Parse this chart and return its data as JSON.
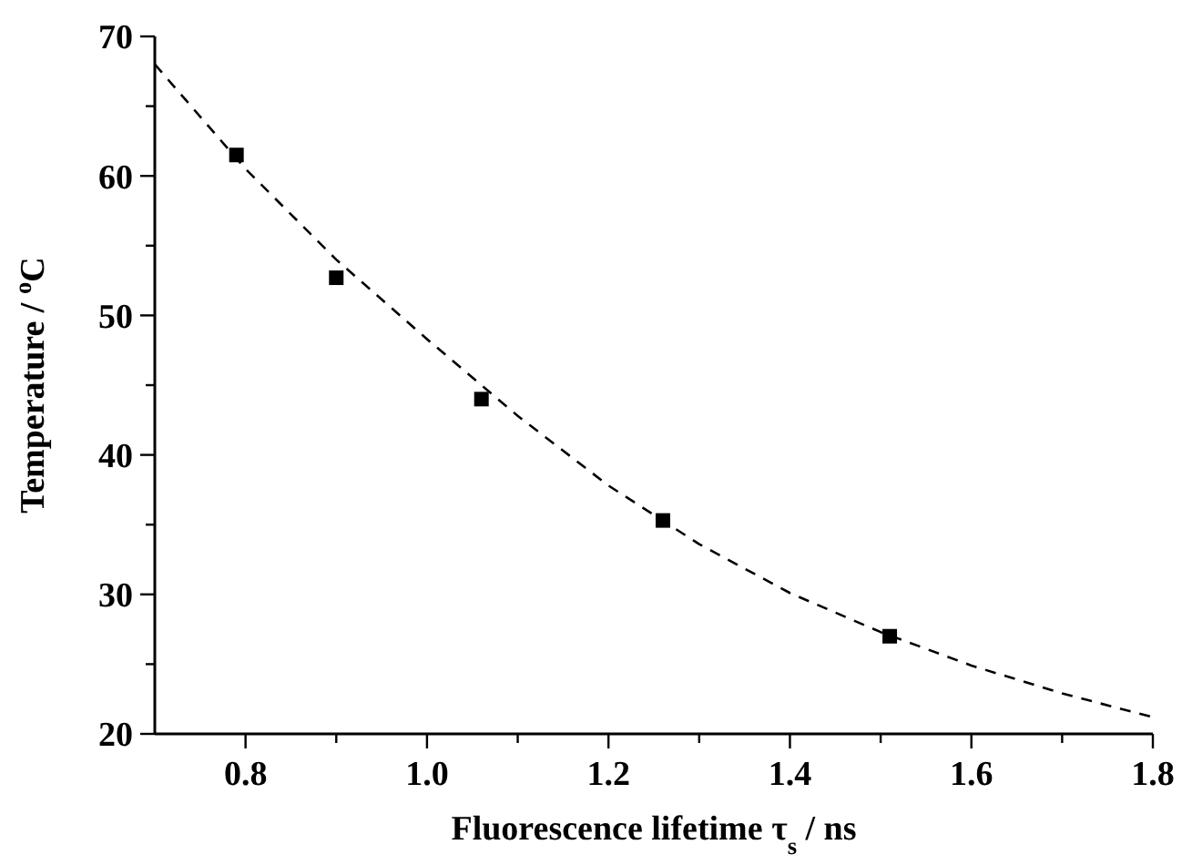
{
  "chart_data": {
    "type": "scatter",
    "xlabel": "Fluorescence lifetime τ$_{s}$ / ns",
    "ylabel": "Temperature / $^{o}$C",
    "xlim": [
      0.7,
      1.8
    ],
    "ylim": [
      20,
      70
    ],
    "xticks": [
      0.8,
      {
        "value": 0.9,
        "label": null
      },
      {
        "value": 1.0,
        "label": "1.0"
      },
      {
        "value": 1.1,
        "label": null
      },
      1.2,
      {
        "value": 1.3,
        "label": null
      },
      1.4,
      {
        "value": 1.5,
        "label": null
      },
      1.6,
      {
        "value": 1.7,
        "label": null
      },
      1.8
    ],
    "yticks": [
      20,
      {
        "value": 25,
        "label": null
      },
      30,
      {
        "value": 35,
        "label": null
      },
      40,
      {
        "value": 45,
        "label": null
      },
      50,
      {
        "value": 55,
        "label": null
      },
      60,
      {
        "value": 65,
        "label": null
      },
      70
    ],
    "grid": false,
    "series": [
      {
        "color": "#000000",
        "marker": "square",
        "x": [
          0.79,
          0.9,
          1.06,
          1.26,
          1.51
        ],
        "values": [
          61.5,
          52.7,
          44.0,
          35.3,
          27.0
        ]
      },
      {
        "type": "line",
        "color": "#000000",
        "line_style": "dashed",
        "marker": "none",
        "x": [
          0.7,
          0.8,
          0.9,
          1.0,
          1.1,
          1.2,
          1.3,
          1.4,
          1.5,
          1.6,
          1.7,
          1.8
        ],
        "values": [
          68.0,
          60.5,
          54.0,
          48.3,
          42.8,
          37.8,
          33.6,
          30.1,
          27.3,
          24.9,
          22.9,
          21.2
        ]
      }
    ]
  }
}
